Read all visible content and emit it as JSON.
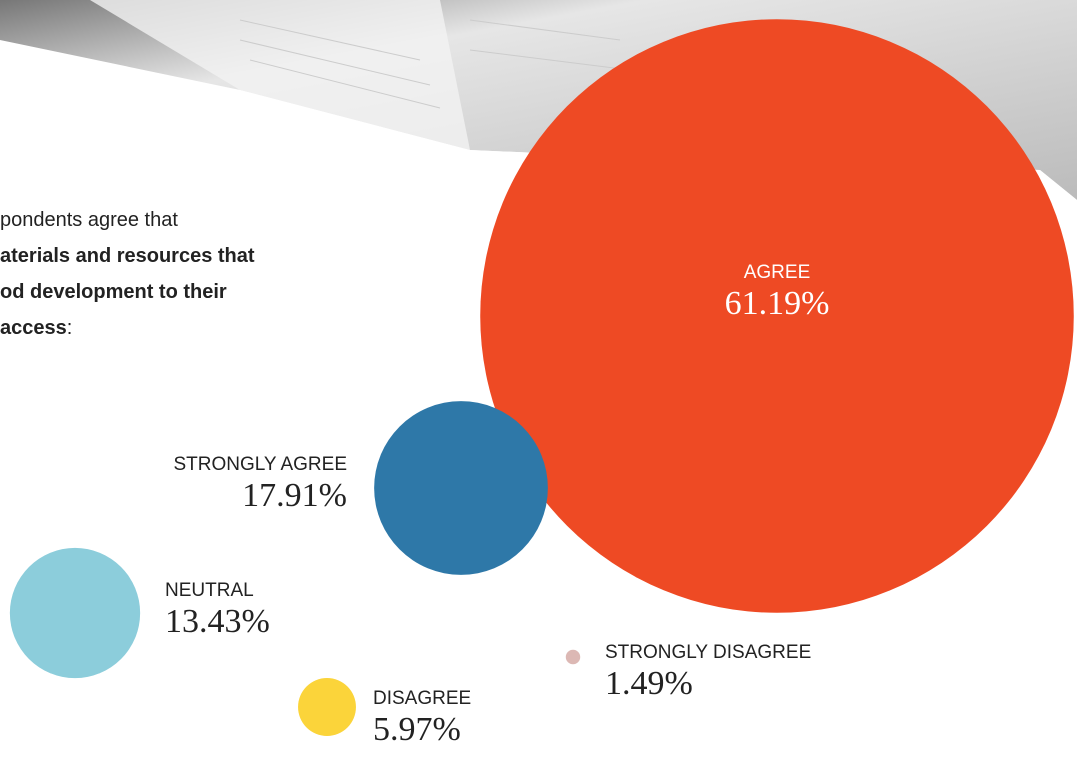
{
  "intro": {
    "line1": "pondents agree that",
    "line2": "aterials and resources that",
    "line3": "od development to their",
    "line4_bold": "access",
    "line4_rest": ":"
  },
  "chart_data": {
    "type": "bubble",
    "categories": [
      "AGREE",
      "STRONGLY AGREE",
      "NEUTRAL",
      "DISAGREE",
      "STRONGLY DISAGREE"
    ],
    "values": [
      61.19,
      17.91,
      13.43,
      5.97,
      1.49
    ],
    "value_labels": [
      "61.19%",
      "17.91%",
      "13.43%",
      "5.97%",
      "1.49%"
    ],
    "colors": [
      "#ee4a24",
      "#2e78a8",
      "#8ccddb",
      "#fbd43a",
      "#dcb8b4"
    ]
  }
}
